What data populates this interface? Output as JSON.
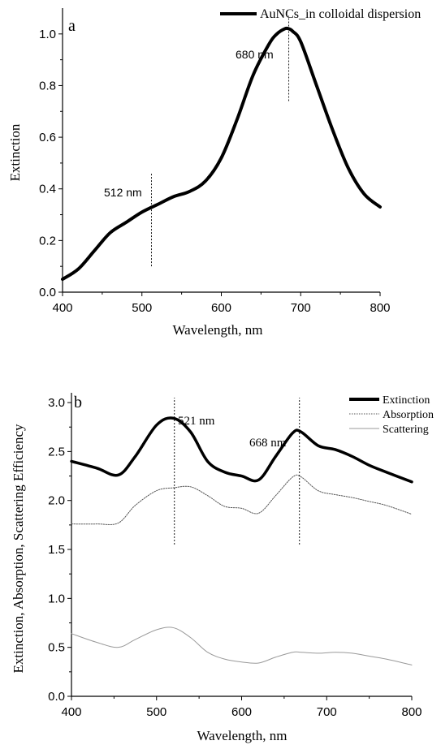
{
  "chart_data": [
    {
      "type": "line",
      "panel": "a",
      "xlabel": "Wavelength, nm",
      "ylabel": "Extinction",
      "xlim": [
        400,
        800
      ],
      "ylim": [
        0.0,
        1.1
      ],
      "xticks": [
        400,
        500,
        600,
        700,
        800
      ],
      "yticks": [
        0.0,
        0.2,
        0.4,
        0.6,
        0.8,
        1.0
      ],
      "xtick_labels": [
        "400",
        "500",
        "600",
        "700",
        "800"
      ],
      "ytick_labels": [
        "0.0",
        "0.2",
        "0.4",
        "0.6",
        "0.8",
        "1.0"
      ],
      "legend": "top-right",
      "series": [
        {
          "name": "AuNCs_in colloidal dispersion",
          "color": "#000000",
          "style": "solid",
          "x": [
            400,
            420,
            440,
            460,
            480,
            500,
            520,
            540,
            560,
            580,
            600,
            620,
            640,
            660,
            670,
            680,
            685,
            690,
            700,
            720,
            740,
            760,
            780,
            800
          ],
          "y": [
            0.05,
            0.09,
            0.16,
            0.23,
            0.27,
            0.31,
            0.34,
            0.37,
            0.39,
            0.43,
            0.52,
            0.67,
            0.84,
            0.96,
            1.0,
            1.02,
            1.02,
            1.01,
            0.97,
            0.8,
            0.63,
            0.48,
            0.38,
            0.33
          ]
        }
      ],
      "annotations": [
        {
          "text": "512 nm",
          "x": 512,
          "y_range": [
            0.1,
            0.46
          ]
        },
        {
          "text": "680 nm",
          "x": 685,
          "y_range": [
            0.74,
            1.07
          ]
        }
      ]
    },
    {
      "type": "line",
      "panel": "b",
      "xlabel": "Wavelength, nm",
      "ylabel": "Extinction, Absorption, Scattering Efficiency",
      "xlim": [
        400,
        800
      ],
      "ylim": [
        0.0,
        3.1
      ],
      "xticks": [
        400,
        500,
        600,
        700,
        800
      ],
      "yticks": [
        0.0,
        0.5,
        1.0,
        1.5,
        2.0,
        2.5,
        3.0
      ],
      "xtick_labels": [
        "400",
        "500",
        "600",
        "700",
        "800"
      ],
      "ytick_labels": [
        "0.0",
        "0.5",
        "1.0",
        "1.5",
        "2.0",
        "2.5",
        "3.0"
      ],
      "legend": "top-right",
      "series": [
        {
          "name": "Extinction",
          "color": "#000000",
          "style": "solid-thick",
          "x": [
            400,
            430,
            455,
            475,
            500,
            520,
            540,
            560,
            580,
            600,
            620,
            640,
            660,
            670,
            690,
            710,
            730,
            750,
            770,
            800
          ],
          "y": [
            2.4,
            2.33,
            2.26,
            2.45,
            2.77,
            2.84,
            2.7,
            2.4,
            2.29,
            2.25,
            2.21,
            2.45,
            2.69,
            2.7,
            2.56,
            2.52,
            2.45,
            2.36,
            2.29,
            2.19
          ]
        },
        {
          "name": "Absorption",
          "color": "#555555",
          "style": "dotted",
          "x": [
            400,
            430,
            455,
            475,
            500,
            520,
            540,
            560,
            580,
            600,
            620,
            640,
            660,
            670,
            690,
            710,
            730,
            750,
            770,
            800
          ],
          "y": [
            1.76,
            1.76,
            1.77,
            1.95,
            2.1,
            2.13,
            2.14,
            2.05,
            1.94,
            1.92,
            1.87,
            2.05,
            2.24,
            2.24,
            2.1,
            2.06,
            2.03,
            1.99,
            1.95,
            1.86
          ]
        },
        {
          "name": "Scattering",
          "color": "#999999",
          "style": "thin",
          "x": [
            400,
            430,
            455,
            475,
            500,
            520,
            540,
            560,
            580,
            600,
            620,
            640,
            660,
            670,
            690,
            710,
            730,
            750,
            770,
            800
          ],
          "y": [
            0.64,
            0.55,
            0.5,
            0.58,
            0.68,
            0.7,
            0.6,
            0.45,
            0.38,
            0.35,
            0.34,
            0.4,
            0.45,
            0.45,
            0.44,
            0.45,
            0.44,
            0.41,
            0.38,
            0.32
          ]
        }
      ],
      "annotations": [
        {
          "text": "521 nm",
          "x": 521,
          "y_range": [
            1.55,
            3.05
          ]
        },
        {
          "text": "668 nm",
          "x": 668,
          "y_range": [
            1.55,
            3.05
          ]
        }
      ]
    }
  ]
}
